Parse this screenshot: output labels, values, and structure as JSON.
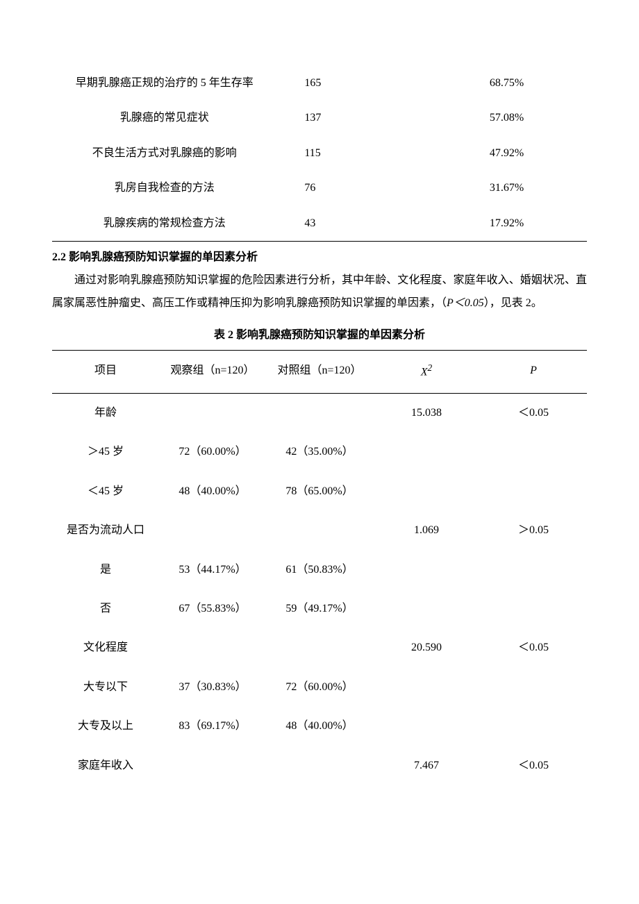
{
  "table1": {
    "rows": [
      {
        "label": "早期乳腺癌正规的治疗的 5 年生存率",
        "n": "165",
        "pct": "68.75%"
      },
      {
        "label": "乳腺癌的常见症状",
        "n": "137",
        "pct": "57.08%"
      },
      {
        "label": "不良生活方式对乳腺癌的影响",
        "n": "115",
        "pct": "47.92%"
      },
      {
        "label": "乳房自我检查的方法",
        "n": "76",
        "pct": "31.67%"
      },
      {
        "label": "乳腺疾病的常规检查方法",
        "n": "43",
        "pct": "17.92%"
      }
    ]
  },
  "section_heading": "2.2 影响乳腺癌预防知识掌握的单因素分析",
  "body_paragraph_parts": {
    "p1": "通过对影响乳腺癌预防知识掌握的危险因素进行分析，其中年龄、文化程度、家庭年收入、婚姻状况、直属家属恶性肿瘤史、高压工作或精神压抑为影响乳腺癌预防知识掌握的单因素，（",
    "p_italic": "P＜0.05",
    "p2": "），见表 2。"
  },
  "table2": {
    "caption": "表 2 影响乳腺癌预防知识掌握的单因素分析",
    "headers": {
      "h1": "项目",
      "h2": "观察组（n=120）",
      "h3": "对照组（n=120）",
      "h4": "X",
      "h4_sup": "2",
      "h5": "P"
    },
    "rows": [
      {
        "c1": "年龄",
        "c2": "",
        "c3": "",
        "c4": "15.038",
        "c5": "＜0.05"
      },
      {
        "c1": "＞45 岁",
        "c2": "72（60.00%）",
        "c3": "42（35.00%）",
        "c4": "",
        "c5": ""
      },
      {
        "c1": "＜45 岁",
        "c2": "48（40.00%）",
        "c3": "78（65.00%）",
        "c4": "",
        "c5": ""
      },
      {
        "c1": "是否为流动人口",
        "c2": "",
        "c3": "",
        "c4": "1.069",
        "c5": "＞0.05"
      },
      {
        "c1": "是",
        "c2": "53（44.17%）",
        "c3": "61（50.83%）",
        "c4": "",
        "c5": ""
      },
      {
        "c1": "否",
        "c2": "67（55.83%）",
        "c3": "59（49.17%）",
        "c4": "",
        "c5": ""
      },
      {
        "c1": "文化程度",
        "c2": "",
        "c3": "",
        "c4": "20.590",
        "c5": "＜0.05"
      },
      {
        "c1": "大专以下",
        "c2": "37（30.83%）",
        "c3": "72（60.00%）",
        "c4": "",
        "c5": ""
      },
      {
        "c1": "大专及以上",
        "c2": "83（69.17%）",
        "c3": "48（40.00%）",
        "c4": "",
        "c5": ""
      },
      {
        "c1": "家庭年收入",
        "c2": "",
        "c3": "",
        "c4": "7.467",
        "c5": "＜0.05"
      }
    ]
  }
}
